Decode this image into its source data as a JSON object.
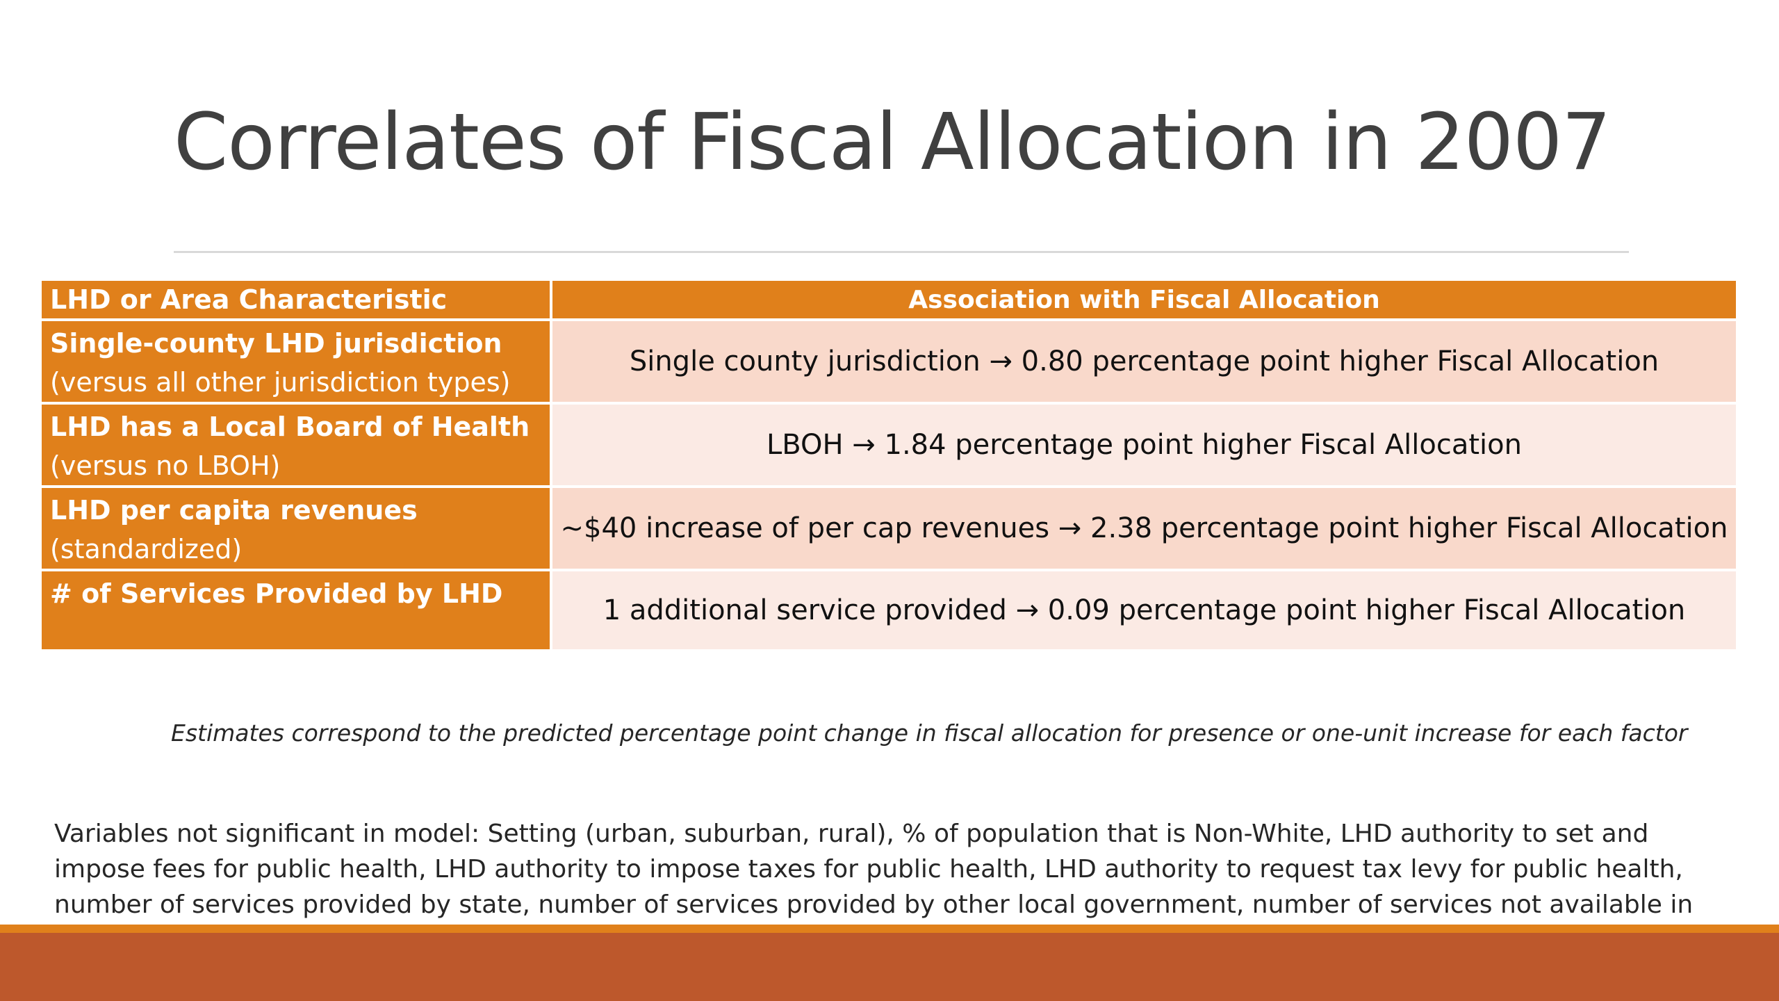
{
  "slide": {
    "title": "Correlates of Fiscal Allocation in 2007"
  },
  "table": {
    "headers": {
      "characteristic": "LHD or Area Characteristic",
      "association": "Association with Fiscal Allocation"
    },
    "rows": [
      {
        "characteristic": "Single-county LHD jurisdiction",
        "qualifier": "(versus all other jurisdiction types)",
        "association": "Single county jurisdiction → 0.80 percentage point higher Fiscal Allocation"
      },
      {
        "characteristic": "LHD has a Local Board of Health",
        "qualifier": "(versus no LBOH)",
        "association": "LBOH → 1.84 percentage point higher Fiscal Allocation"
      },
      {
        "characteristic": "LHD per capita revenues",
        "qualifier": "(standardized)",
        "association": "~$40 increase of per cap revenues → 2.38 percentage point higher Fiscal Allocation"
      },
      {
        "characteristic": "# of Services Provided by LHD",
        "qualifier": "",
        "association": "1 additional service provided → 0.09 percentage point higher Fiscal Allocation"
      }
    ]
  },
  "footnote": "Estimates correspond to the predicted percentage point change in fiscal allocation for presence or one-unit increase for each factor",
  "note": "Variables not significant in model: Setting (urban, suburban, rural), % of population that is Non-White, LHD authority to set and impose fees for public health, LHD authority to impose taxes for public health, LHD authority to request tax levy for public health, number of services provided by state, number of services provided by other local government, number of services not available in area",
  "colors": {
    "accent_orange": "#e0801b",
    "footer_rust": "#bd582c",
    "row_light_1": "#f9d9cb",
    "row_light_2": "#fbeae4",
    "title_gray": "#404040"
  }
}
